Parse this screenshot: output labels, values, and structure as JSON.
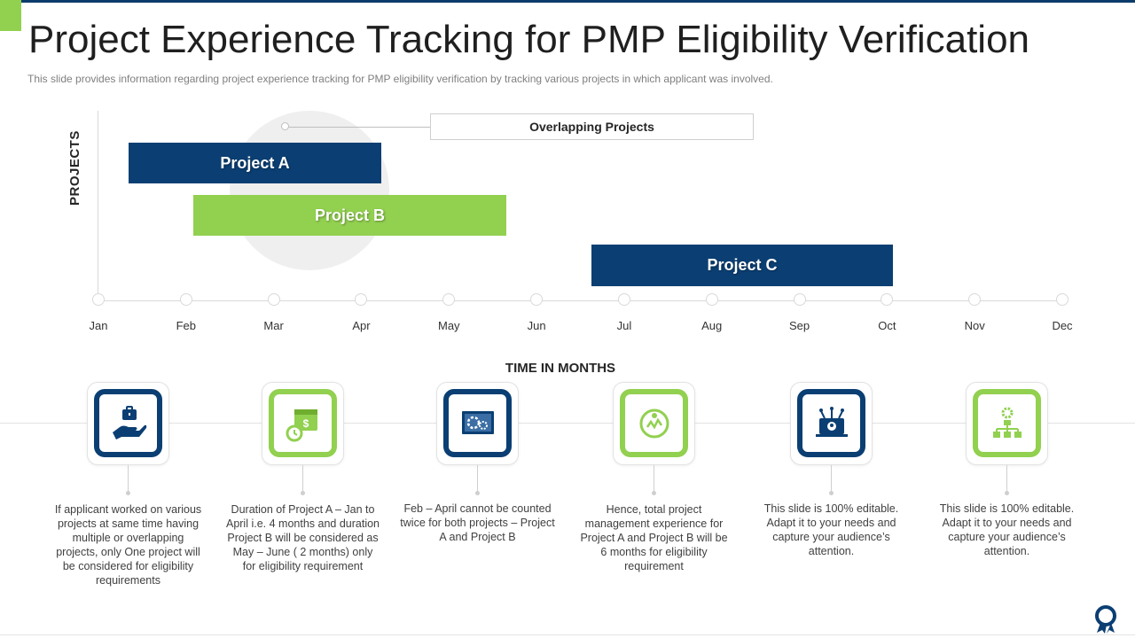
{
  "header": {
    "title": "Project Experience Tracking for PMP Eligibility Verification",
    "subtitle": "This slide provides  information  regarding  project experience  tracking for PMP eligibility verification  by tracking various  projects in which applicant was involved."
  },
  "chart_data": {
    "type": "gantt",
    "ylabel": "PROJECTS",
    "xlabel": "TIME IN MONTHS",
    "months": [
      "Jan",
      "Feb",
      "Mar",
      "Apr",
      "May",
      "Jun",
      "Jul",
      "Aug",
      "Sep",
      "Oct",
      "Nov",
      "Dec"
    ],
    "series": [
      {
        "name": "Project A",
        "color": "#0b3f73"
      },
      {
        "name": "Project B",
        "color": "#92d050"
      },
      {
        "name": "Project C",
        "color": "#0b3f73"
      }
    ],
    "annotation": "Overlapping Projects"
  },
  "cards": [
    {
      "icon": "hand-briefcase-icon",
      "color": "#0b3f73",
      "text": "If applicant worked on various projects at same time having multiple or overlapping  projects, only One project will be considered for eligibility requirements"
    },
    {
      "icon": "calendar-dollar-icon",
      "color": "#92d050",
      "text": "Duration  of Project A – Jan to April i.e. 4 months and duration Project B will be considered as May – June ( 2 months) only for eligibility requirement"
    },
    {
      "icon": "gears-screen-icon",
      "color": "#0b3f73",
      "text": "Feb – April cannot be counted twice for both projects – Project A and Project B"
    },
    {
      "icon": "experience-hands-icon",
      "color": "#92d050",
      "text": "Hence, total project management experience for Project A and Project B will be 6 months for eligibility requirement"
    },
    {
      "icon": "network-laptop-icon",
      "color": "#0b3f73",
      "text": "This slide is 100% editable. Adapt it to your needs and capture your audience’s attention."
    },
    {
      "icon": "org-chart-gear-icon",
      "color": "#92d050",
      "text": "This slide is 100% editable. Adapt it to your needs and capture your audience’s attention."
    }
  ]
}
